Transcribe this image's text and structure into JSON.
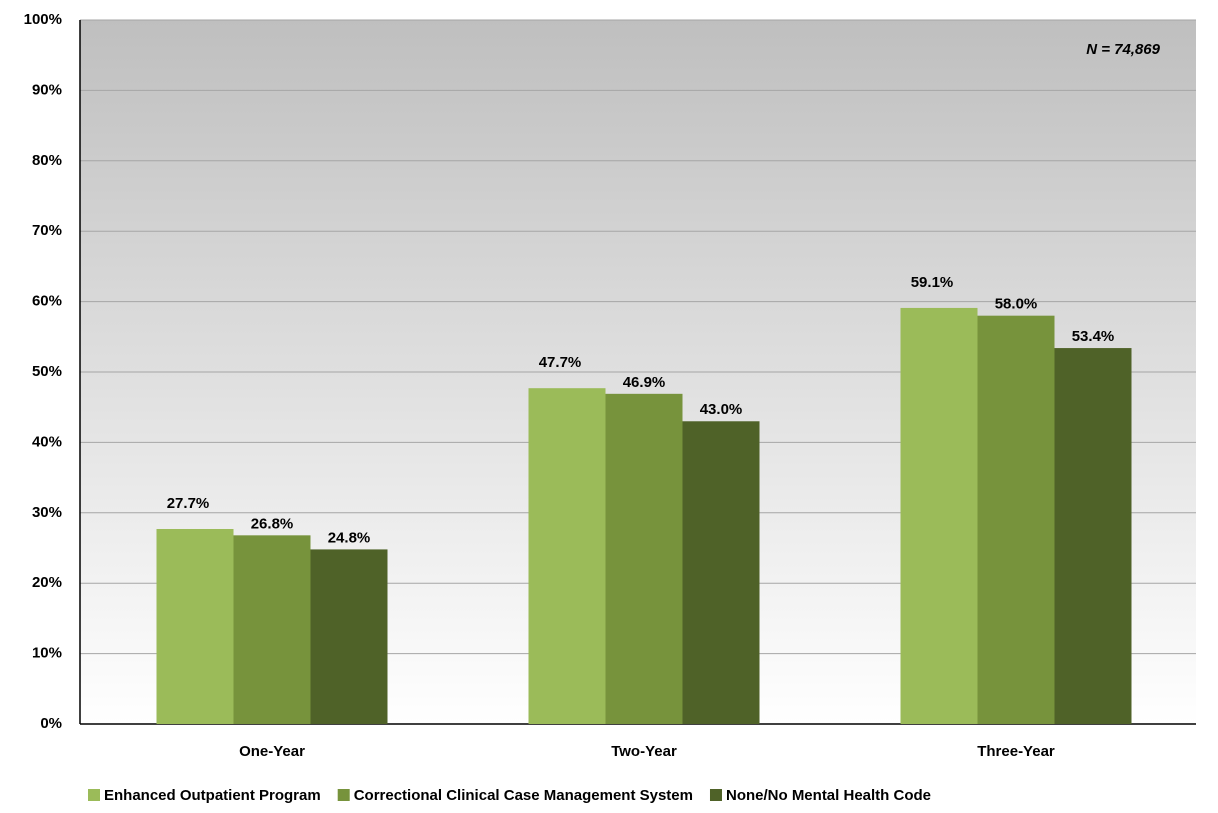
{
  "chart_data": {
    "type": "bar",
    "annotation": "N = 74,869",
    "categories": [
      "One-Year",
      "Two-Year",
      "Three-Year"
    ],
    "series": [
      {
        "name": "Enhanced Outpatient Program",
        "color": "#9bbb59",
        "values": [
          27.7,
          47.7,
          59.1
        ],
        "value_labels": [
          "27.7%",
          "47.7%",
          "59.1%"
        ]
      },
      {
        "name": "Correctional Clinical Case Management System",
        "color": "#77933c",
        "values": [
          26.8,
          46.9,
          58.0
        ],
        "value_labels": [
          "26.8%",
          "46.9%",
          "58.0%"
        ]
      },
      {
        "name": "None/No Mental Health Code",
        "color": "#4f6228",
        "values": [
          24.8,
          43.0,
          53.4
        ],
        "value_labels": [
          "24.8%",
          "43.0%",
          "53.4%"
        ]
      }
    ],
    "ylim": [
      0,
      100
    ],
    "yticks": [
      {
        "value": 0,
        "label": "0%"
      },
      {
        "value": 10,
        "label": "10%"
      },
      {
        "value": 20,
        "label": "20%"
      },
      {
        "value": 30,
        "label": "30%"
      },
      {
        "value": 40,
        "label": "40%"
      },
      {
        "value": 50,
        "label": "50%"
      },
      {
        "value": 60,
        "label": "60%"
      },
      {
        "value": 70,
        "label": "70%"
      },
      {
        "value": 80,
        "label": "80%"
      },
      {
        "value": 90,
        "label": "90%"
      },
      {
        "value": 100,
        "label": "100%"
      }
    ],
    "grid": true,
    "legend": "bottom"
  }
}
